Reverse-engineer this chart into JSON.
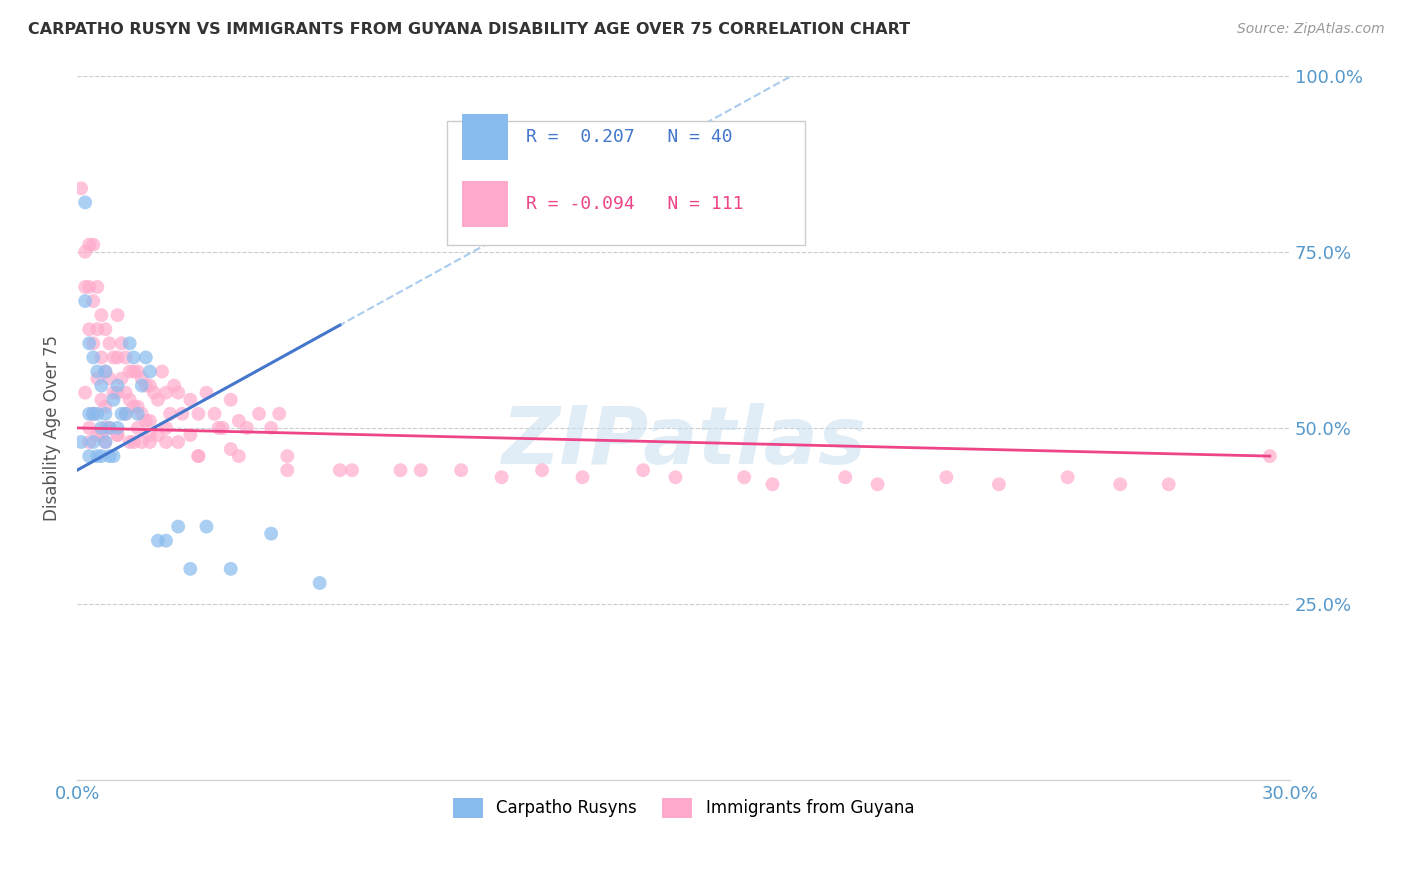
{
  "title": "CARPATHO RUSYN VS IMMIGRANTS FROM GUYANA DISABILITY AGE OVER 75 CORRELATION CHART",
  "source": "Source: ZipAtlas.com",
  "ylabel": "Disability Age Over 75",
  "xlim": [
    0.0,
    0.3
  ],
  "ylim": [
    0.0,
    1.0
  ],
  "blue_color": "#88BBEE",
  "pink_color": "#FFAACC",
  "blue_line_color": "#4477CC",
  "pink_line_color": "#EE4488",
  "blue_dashed_color": "#AACCEE",
  "watermark": "ZIPatlas",
  "blue_R": 0.207,
  "blue_N": 40,
  "pink_R": -0.094,
  "pink_N": 111,
  "blue_points_x": [
    0.001,
    0.002,
    0.002,
    0.003,
    0.003,
    0.003,
    0.004,
    0.004,
    0.004,
    0.005,
    0.005,
    0.005,
    0.006,
    0.006,
    0.006,
    0.007,
    0.007,
    0.007,
    0.008,
    0.008,
    0.009,
    0.009,
    0.01,
    0.01,
    0.011,
    0.012,
    0.013,
    0.014,
    0.015,
    0.016,
    0.017,
    0.018,
    0.02,
    0.022,
    0.025,
    0.028,
    0.032,
    0.038,
    0.048,
    0.06
  ],
  "blue_points_y": [
    0.48,
    0.68,
    0.82,
    0.46,
    0.52,
    0.62,
    0.48,
    0.52,
    0.6,
    0.46,
    0.52,
    0.58,
    0.46,
    0.5,
    0.56,
    0.48,
    0.52,
    0.58,
    0.46,
    0.5,
    0.46,
    0.54,
    0.5,
    0.56,
    0.52,
    0.52,
    0.62,
    0.6,
    0.52,
    0.56,
    0.6,
    0.58,
    0.34,
    0.34,
    0.36,
    0.3,
    0.36,
    0.3,
    0.35,
    0.28
  ],
  "pink_points_x": [
    0.001,
    0.002,
    0.002,
    0.003,
    0.003,
    0.003,
    0.004,
    0.004,
    0.004,
    0.005,
    0.005,
    0.005,
    0.006,
    0.006,
    0.006,
    0.007,
    0.007,
    0.007,
    0.008,
    0.008,
    0.009,
    0.009,
    0.01,
    0.01,
    0.01,
    0.011,
    0.011,
    0.012,
    0.012,
    0.013,
    0.013,
    0.014,
    0.014,
    0.015,
    0.015,
    0.016,
    0.016,
    0.017,
    0.017,
    0.018,
    0.018,
    0.019,
    0.02,
    0.021,
    0.022,
    0.023,
    0.024,
    0.025,
    0.026,
    0.028,
    0.03,
    0.032,
    0.034,
    0.036,
    0.038,
    0.04,
    0.042,
    0.045,
    0.048,
    0.05,
    0.003,
    0.004,
    0.006,
    0.008,
    0.012,
    0.015,
    0.018,
    0.022,
    0.028,
    0.035,
    0.003,
    0.005,
    0.007,
    0.01,
    0.013,
    0.016,
    0.02,
    0.025,
    0.03,
    0.038,
    0.002,
    0.004,
    0.007,
    0.01,
    0.014,
    0.018,
    0.022,
    0.03,
    0.04,
    0.052,
    0.065,
    0.08,
    0.095,
    0.115,
    0.14,
    0.165,
    0.19,
    0.215,
    0.245,
    0.27,
    0.052,
    0.068,
    0.085,
    0.105,
    0.125,
    0.148,
    0.172,
    0.198,
    0.228,
    0.258,
    0.295
  ],
  "pink_points_y": [
    0.84,
    0.75,
    0.7,
    0.76,
    0.7,
    0.64,
    0.76,
    0.68,
    0.62,
    0.7,
    0.64,
    0.57,
    0.66,
    0.6,
    0.54,
    0.64,
    0.58,
    0.53,
    0.62,
    0.57,
    0.6,
    0.55,
    0.66,
    0.6,
    0.55,
    0.62,
    0.57,
    0.6,
    0.55,
    0.58,
    0.54,
    0.58,
    0.53,
    0.58,
    0.53,
    0.57,
    0.52,
    0.56,
    0.51,
    0.56,
    0.51,
    0.55,
    0.54,
    0.58,
    0.55,
    0.52,
    0.56,
    0.55,
    0.52,
    0.54,
    0.52,
    0.55,
    0.52,
    0.5,
    0.54,
    0.51,
    0.5,
    0.52,
    0.5,
    0.52,
    0.5,
    0.52,
    0.49,
    0.5,
    0.52,
    0.5,
    0.49,
    0.5,
    0.49,
    0.5,
    0.48,
    0.49,
    0.48,
    0.49,
    0.48,
    0.48,
    0.49,
    0.48,
    0.46,
    0.47,
    0.55,
    0.52,
    0.5,
    0.49,
    0.48,
    0.48,
    0.48,
    0.46,
    0.46,
    0.46,
    0.44,
    0.44,
    0.44,
    0.44,
    0.44,
    0.43,
    0.43,
    0.43,
    0.43,
    0.42,
    0.44,
    0.44,
    0.44,
    0.43,
    0.43,
    0.43,
    0.42,
    0.42,
    0.42,
    0.42,
    0.46
  ]
}
